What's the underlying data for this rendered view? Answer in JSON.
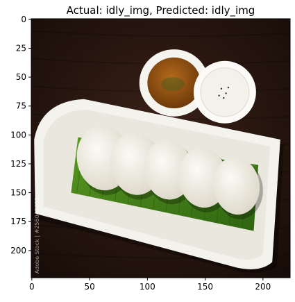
{
  "chart_data": {
    "type": "image",
    "title": "Actual: idly_img, Predicted: idly_img",
    "xlim": [
      -0.5,
      223.5
    ],
    "ylim": [
      223.5,
      -0.5
    ],
    "x_ticks": [
      0,
      50,
      100,
      150,
      200
    ],
    "y_ticks": [
      0,
      25,
      50,
      75,
      100,
      125,
      150,
      175,
      200
    ],
    "grid": false,
    "image": {
      "subject": "idly_img",
      "watermark": "Adobe Stock | #256041632",
      "colors": {
        "table": "#2a1812",
        "plate": "#f4f2ec",
        "leaf": "#3f7d1a",
        "idly": "#efece3",
        "sambar": "#a05a14",
        "chutney": "#f3f1ea"
      }
    }
  }
}
